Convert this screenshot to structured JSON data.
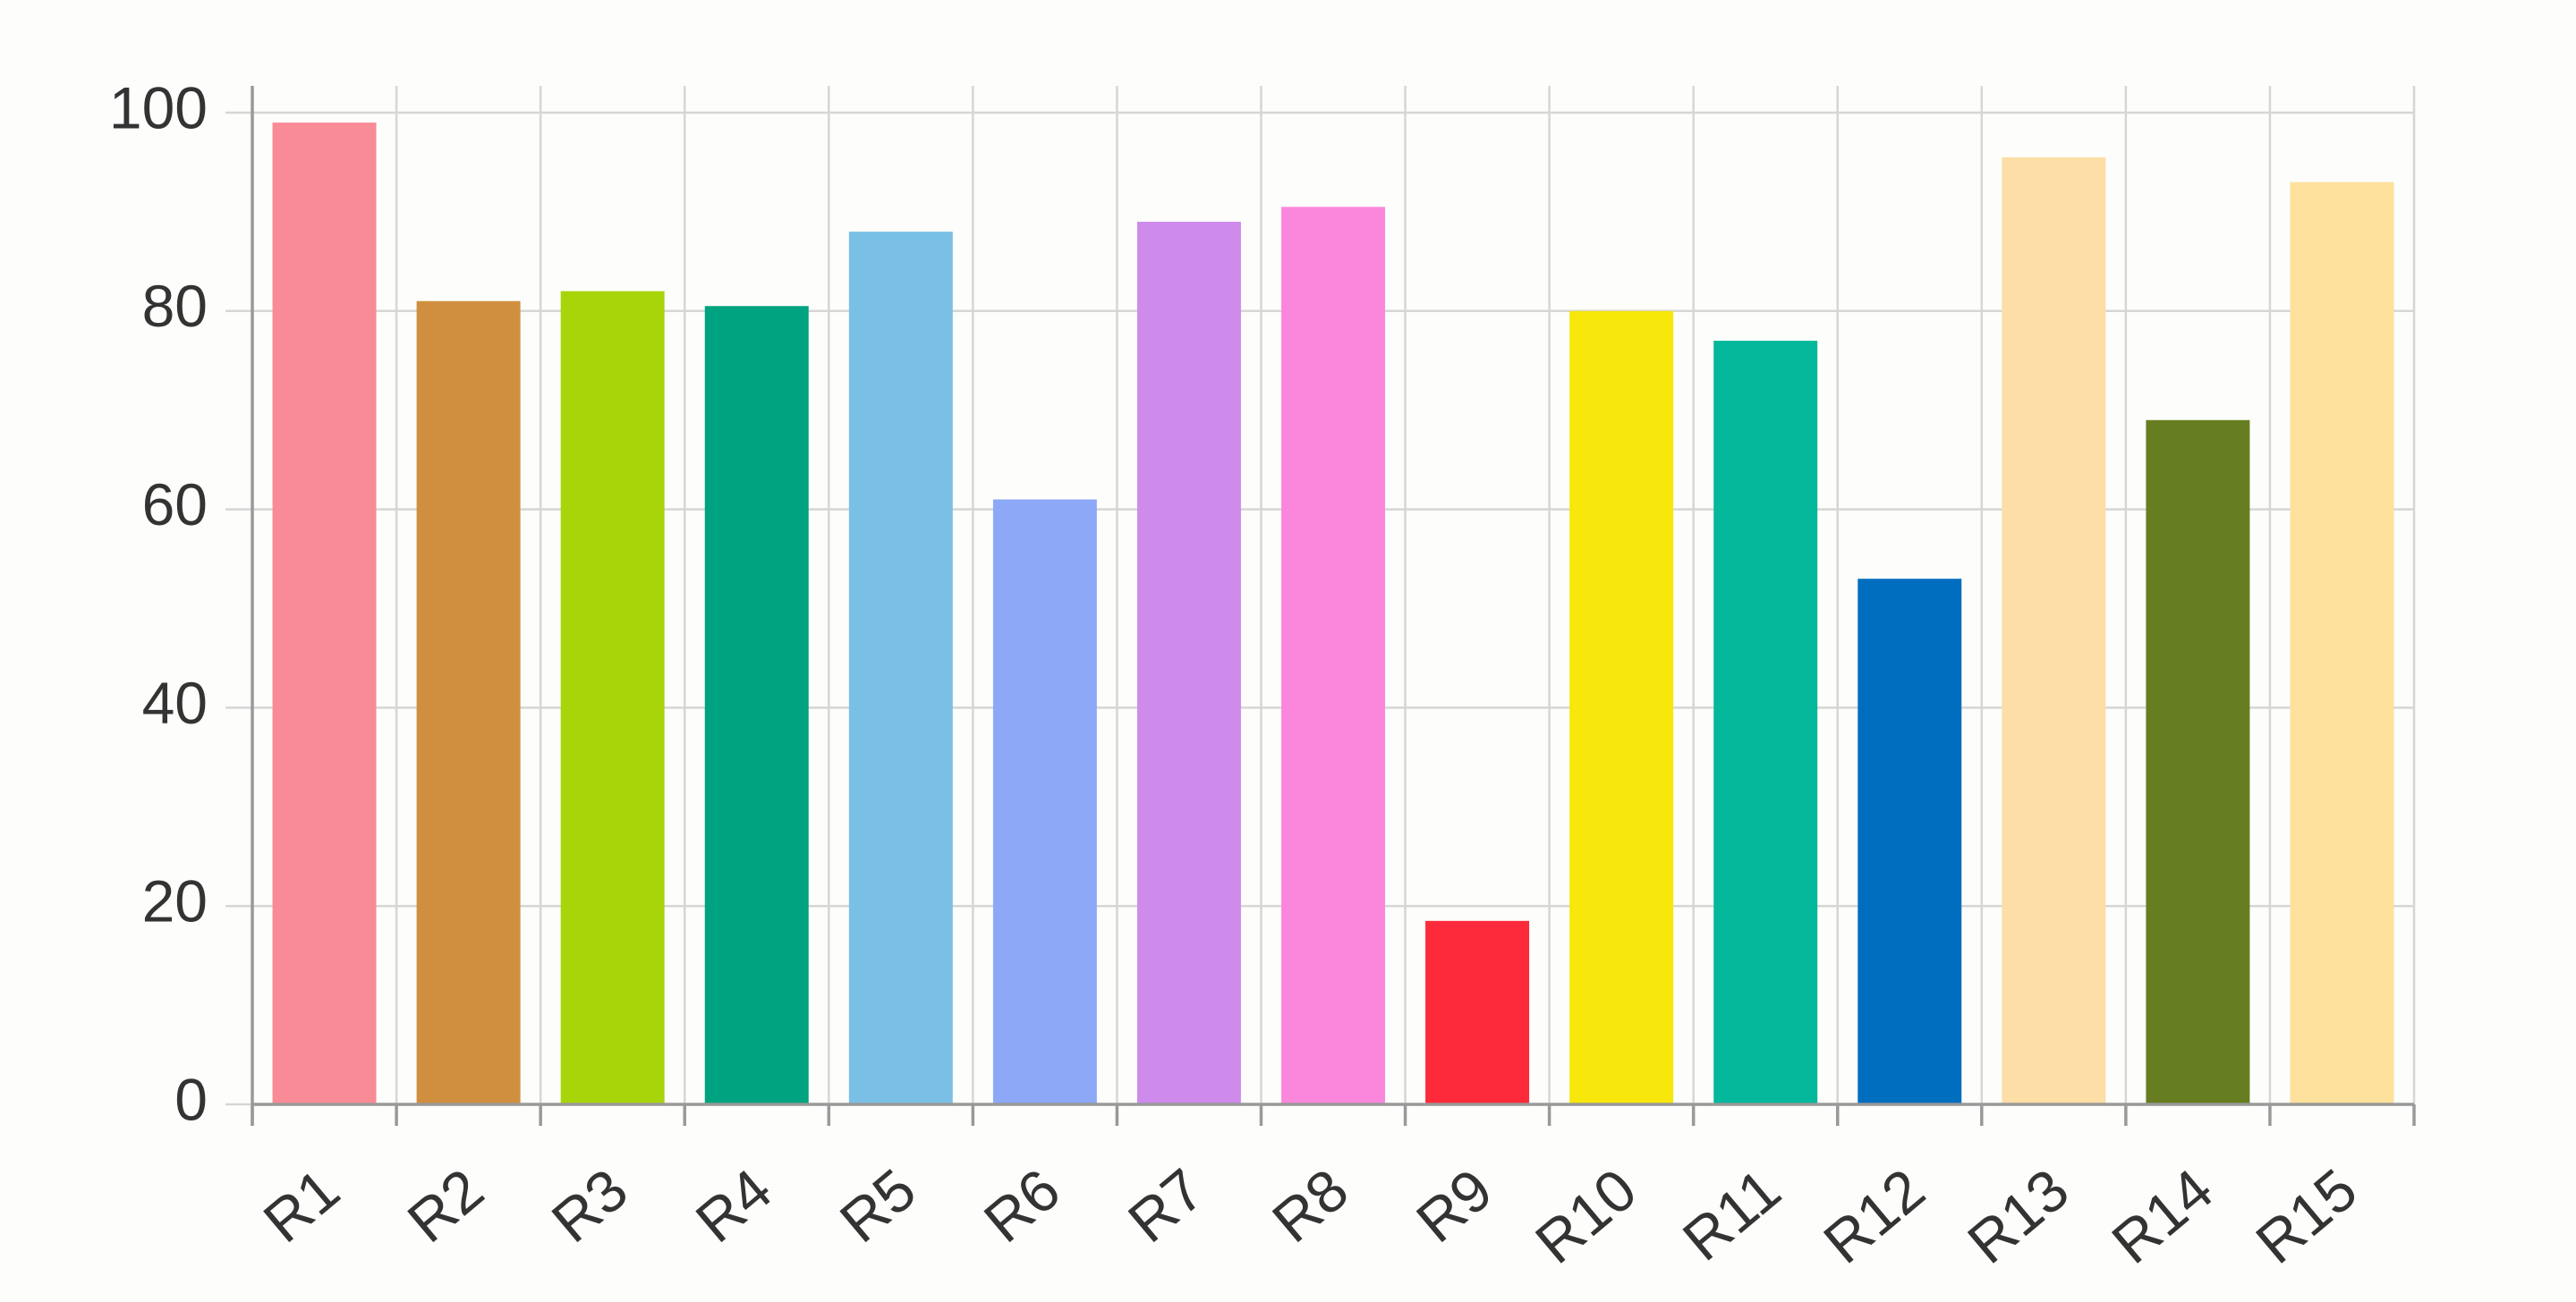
{
  "chart_data": {
    "type": "bar",
    "categories": [
      "R1",
      "R2",
      "R3",
      "R4",
      "R5",
      "R6",
      "R7",
      "R8",
      "R9",
      "R10",
      "R11",
      "R12",
      "R13",
      "R14",
      "R15"
    ],
    "values": [
      99,
      81,
      82,
      80.5,
      88,
      61,
      89,
      90.5,
      18.5,
      80,
      77,
      53,
      95.5,
      69,
      93
    ],
    "colors": [
      "#f98b96",
      "#cf8f3e",
      "#a8d40a",
      "#00a37f",
      "#7abfe6",
      "#8da8f7",
      "#ce8bec",
      "#fb87dc",
      "#fc2a3a",
      "#f7e70a",
      "#03b89b",
      "#006ebf",
      "#fcdea6",
      "#677d21",
      "#fde19c"
    ],
    "ylim": [
      0,
      100
    ],
    "yticks": [
      0,
      20,
      40,
      60,
      80,
      100
    ],
    "grid": true
  }
}
